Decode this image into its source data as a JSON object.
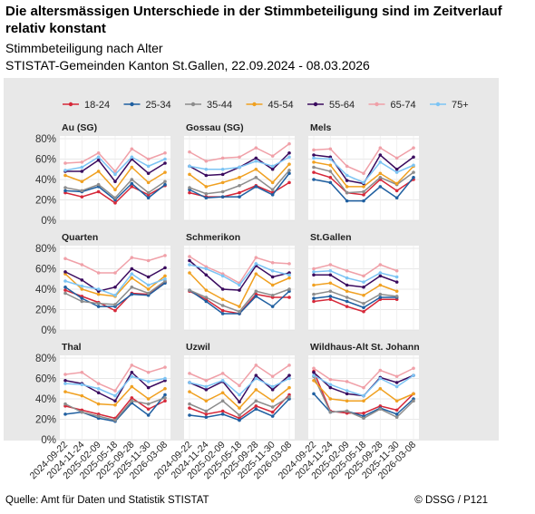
{
  "header": {
    "title": "Die altersmässigen Unterschiede in der Stimmbeteiligung sind im Zeitverlauf relativ konstant",
    "subtitle": "Stimmbeteiligung nach Alter",
    "subtitle2": "STISTAT-Gemeinden Kanton St.Gallen, 22.09.2024 - 08.03.2026"
  },
  "footer": {
    "source": "Quelle: Amt für Daten und Statistik STISTAT",
    "credit": "© DSSG / P121"
  },
  "chart_data": {
    "type": "line",
    "x": [
      "2024-09-22",
      "2024-11-24",
      "2025-02-09",
      "2025-05-18",
      "2025-09-28",
      "2025-11-30",
      "2026-03-08"
    ],
    "ylim": [
      0,
      80
    ],
    "yticks": [
      "0%",
      "20%",
      "40%",
      "60%",
      "80%"
    ],
    "yunit": "%",
    "grid": true,
    "legend_position": "top",
    "legend": [
      {
        "name": "18-24",
        "color": "#d62839"
      },
      {
        "name": "25-34",
        "color": "#1f5fa0"
      },
      {
        "name": "35-44",
        "color": "#8c8c8c"
      },
      {
        "name": "45-54",
        "color": "#f0a020"
      },
      {
        "name": "55-64",
        "color": "#3a0a5e"
      },
      {
        "name": "65-74",
        "color": "#f0a0a8"
      },
      {
        "name": "75+",
        "color": "#7cc4f4"
      }
    ],
    "panels": [
      {
        "title": "Au (SG)",
        "series": [
          [
            27,
            23,
            28,
            17,
            33,
            25,
            34
          ],
          [
            29,
            28,
            33,
            20,
            36,
            22,
            35
          ],
          [
            32,
            29,
            35,
            22,
            40,
            27,
            38
          ],
          [
            44,
            38,
            48,
            30,
            52,
            37,
            47
          ],
          [
            48,
            48,
            59,
            38,
            60,
            46,
            56
          ],
          [
            56,
            57,
            66,
            48,
            70,
            60,
            66
          ],
          [
            49,
            52,
            62,
            45,
            62,
            53,
            60
          ]
        ]
      },
      {
        "title": "Gossau (SG)",
        "series": [
          [
            27,
            23,
            23,
            27,
            34,
            27,
            37
          ],
          [
            30,
            22,
            23,
            23,
            33,
            25,
            46
          ],
          [
            32,
            26,
            28,
            34,
            42,
            30,
            49
          ],
          [
            45,
            33,
            37,
            42,
            50,
            37,
            55
          ],
          [
            53,
            44,
            45,
            52,
            61,
            50,
            66
          ],
          [
            67,
            58,
            61,
            62,
            71,
            63,
            75
          ],
          [
            53,
            50,
            50,
            52,
            58,
            53,
            62
          ]
        ]
      },
      {
        "title": "Mels",
        "series": [
          [
            47,
            42,
            27,
            25,
            40,
            29,
            40
          ],
          [
            40,
            37,
            19,
            19,
            33,
            22,
            42
          ],
          [
            52,
            48,
            27,
            28,
            42,
            35,
            47
          ],
          [
            57,
            54,
            33,
            33,
            46,
            36,
            53
          ],
          [
            64,
            62,
            39,
            36,
            64,
            50,
            62
          ],
          [
            69,
            70,
            53,
            46,
            71,
            61,
            71
          ],
          [
            61,
            60,
            44,
            37,
            57,
            47,
            54
          ]
        ]
      },
      {
        "title": "Quarten",
        "series": [
          [
            39,
            33,
            27,
            19,
            36,
            35,
            47
          ],
          [
            42,
            31,
            23,
            23,
            35,
            34,
            46
          ],
          [
            36,
            28,
            26,
            25,
            42,
            36,
            48
          ],
          [
            55,
            40,
            35,
            33,
            51,
            40,
            53
          ],
          [
            57,
            49,
            38,
            42,
            60,
            52,
            61
          ],
          [
            70,
            64,
            56,
            56,
            71,
            68,
            73
          ],
          [
            48,
            43,
            40,
            34,
            55,
            44,
            50
          ]
        ]
      },
      {
        "title": "Schmerikon",
        "series": [
          [
            38,
            30,
            19,
            16,
            35,
            32,
            32
          ],
          [
            39,
            28,
            16,
            16,
            33,
            23,
            38
          ],
          [
            39,
            32,
            24,
            18,
            38,
            34,
            40
          ],
          [
            56,
            39,
            30,
            23,
            55,
            44,
            51
          ],
          [
            68,
            54,
            40,
            39,
            63,
            52,
            56
          ],
          [
            72,
            62,
            55,
            46,
            71,
            66,
            65
          ],
          [
            64,
            60,
            53,
            44,
            65,
            58,
            54
          ]
        ]
      },
      {
        "title": "St.Gallen",
        "series": [
          [
            28,
            30,
            23,
            18,
            30,
            30,
            null
          ],
          [
            31,
            33,
            28,
            22,
            32,
            32,
            null
          ],
          [
            35,
            38,
            32,
            26,
            35,
            33,
            null
          ],
          [
            44,
            46,
            38,
            34,
            44,
            38,
            null
          ],
          [
            54,
            54,
            44,
            42,
            53,
            47,
            null
          ],
          [
            60,
            64,
            58,
            53,
            64,
            58,
            null
          ],
          [
            57,
            58,
            51,
            47,
            56,
            52,
            null
          ]
        ]
      },
      {
        "title": "Thal",
        "series": [
          [
            33,
            29,
            25,
            21,
            41,
            30,
            38
          ],
          [
            25,
            27,
            21,
            18,
            36,
            24,
            44
          ],
          [
            35,
            27,
            23,
            19,
            38,
            35,
            41
          ],
          [
            47,
            43,
            35,
            34,
            52,
            40,
            50
          ],
          [
            58,
            55,
            46,
            38,
            66,
            51,
            58
          ],
          [
            64,
            66,
            55,
            48,
            73,
            66,
            71
          ],
          [
            55,
            54,
            50,
            43,
            62,
            57,
            60
          ]
        ]
      },
      {
        "title": "Uzwil",
        "series": [
          [
            31,
            25,
            28,
            21,
            33,
            27,
            44
          ],
          [
            24,
            22,
            25,
            19,
            30,
            23,
            40
          ],
          [
            35,
            28,
            38,
            24,
            38,
            32,
            42
          ],
          [
            47,
            38,
            46,
            31,
            49,
            38,
            51
          ],
          [
            56,
            49,
            57,
            37,
            63,
            49,
            63
          ],
          [
            65,
            58,
            65,
            53,
            73,
            62,
            73
          ],
          [
            56,
            52,
            58,
            44,
            60,
            52,
            60
          ]
        ]
      },
      {
        "title": "Wildhaus-Alt St. Johann",
        "series": [
          [
            67,
            28,
            26,
            26,
            33,
            29,
            45
          ],
          [
            45,
            27,
            28,
            23,
            31,
            25,
            40
          ],
          [
            62,
            27,
            28,
            21,
            30,
            22,
            38
          ],
          [
            58,
            40,
            38,
            38,
            50,
            38,
            45
          ],
          [
            66,
            51,
            45,
            43,
            61,
            56,
            63
          ],
          [
            70,
            59,
            57,
            51,
            68,
            62,
            70
          ],
          [
            63,
            54,
            48,
            43,
            60,
            52,
            63
          ]
        ]
      }
    ]
  }
}
